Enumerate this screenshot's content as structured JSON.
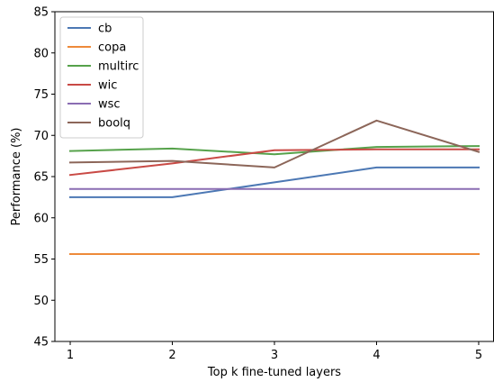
{
  "chart_data": {
    "type": "line",
    "title": "",
    "xlabel": "Top k fine-tuned layers",
    "ylabel": "Performance (%)",
    "x": [
      1,
      2,
      3,
      4,
      5
    ],
    "xlim": [
      0.85,
      5.15
    ],
    "ylim": [
      45,
      85
    ],
    "xticks": [
      "1",
      "2",
      "3",
      "4",
      "5"
    ],
    "yticks": [
      "45",
      "50",
      "55",
      "60",
      "65",
      "70",
      "75",
      "80",
      "85"
    ],
    "grid": false,
    "legend_position": "upper-left",
    "series": [
      {
        "name": "cb",
        "color": "#4c78b4",
        "values": [
          62.5,
          62.5,
          64.3,
          66.1,
          66.1
        ]
      },
      {
        "name": "copa",
        "color": "#ee8a3a",
        "values": [
          55.6,
          55.6,
          55.6,
          55.6,
          55.6
        ]
      },
      {
        "name": "multirc",
        "color": "#56a24b",
        "values": [
          68.1,
          68.4,
          67.7,
          68.6,
          68.7
        ]
      },
      {
        "name": "wic",
        "color": "#c94a45",
        "values": [
          65.2,
          66.6,
          68.2,
          68.3,
          68.3
        ]
      },
      {
        "name": "wsc",
        "color": "#8a6db2",
        "values": [
          63.5,
          63.5,
          63.5,
          63.5,
          63.5
        ]
      },
      {
        "name": "boolq",
        "color": "#8c6659",
        "values": [
          66.7,
          66.9,
          66.1,
          71.8,
          68.0
        ]
      }
    ]
  }
}
